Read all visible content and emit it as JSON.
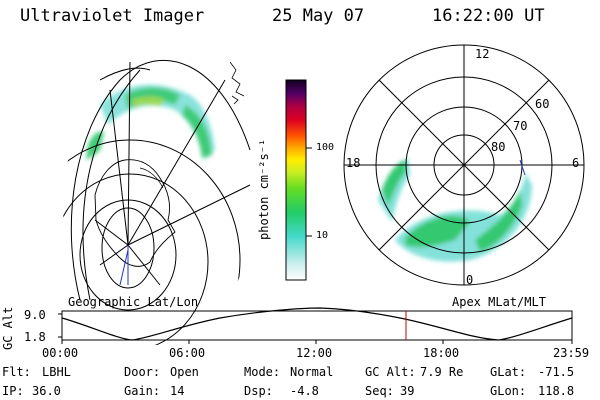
{
  "header": {
    "instrument": "Ultraviolet Imager",
    "date": "25 May 07",
    "time": "16:22:00 UT"
  },
  "colorbar": {
    "label": "photon cm⁻²s⁻¹",
    "ticks": [
      "100",
      "10"
    ]
  },
  "geo_panel": {
    "label": "Geographic Lat/Lon"
  },
  "polar_panel": {
    "label": "Apex MLat/MLT",
    "mlt_labels": [
      "12",
      "18",
      "6",
      "0"
    ],
    "lat_labels": [
      "60",
      "70",
      "80"
    ]
  },
  "altitude_plot": {
    "ylabel": "GC Alt",
    "yticks": [
      "9.0",
      "1.8"
    ],
    "xticks": [
      "00:00",
      "06:00",
      "12:00",
      "18:00",
      "23:59"
    ],
    "marker_color": "#cc0000"
  },
  "status": {
    "row1": [
      {
        "key": "Flt:",
        "value": "LBHL"
      },
      {
        "key": "Door:",
        "value": "Open"
      },
      {
        "key": "Mode:",
        "value": "Normal"
      },
      {
        "key": "GC Alt:",
        "value": "7.9 Re"
      },
      {
        "key": "GLat:",
        "value": "-71.5"
      }
    ],
    "row2": [
      {
        "key": "IP:",
        "value": "36.0"
      },
      {
        "key": "Gain:",
        "value": "14"
      },
      {
        "key": "Dsp:",
        "value": "-4.8"
      },
      {
        "key": "Seq:",
        "value": "39"
      },
      {
        "key": "GLon:",
        "value": "118.8"
      }
    ]
  },
  "colors": {
    "aurora_low": "#7ee0d8",
    "aurora_mid": "#2cc66b",
    "aurora_high": "#8fd43a",
    "satellite_track": "#2233cc"
  }
}
